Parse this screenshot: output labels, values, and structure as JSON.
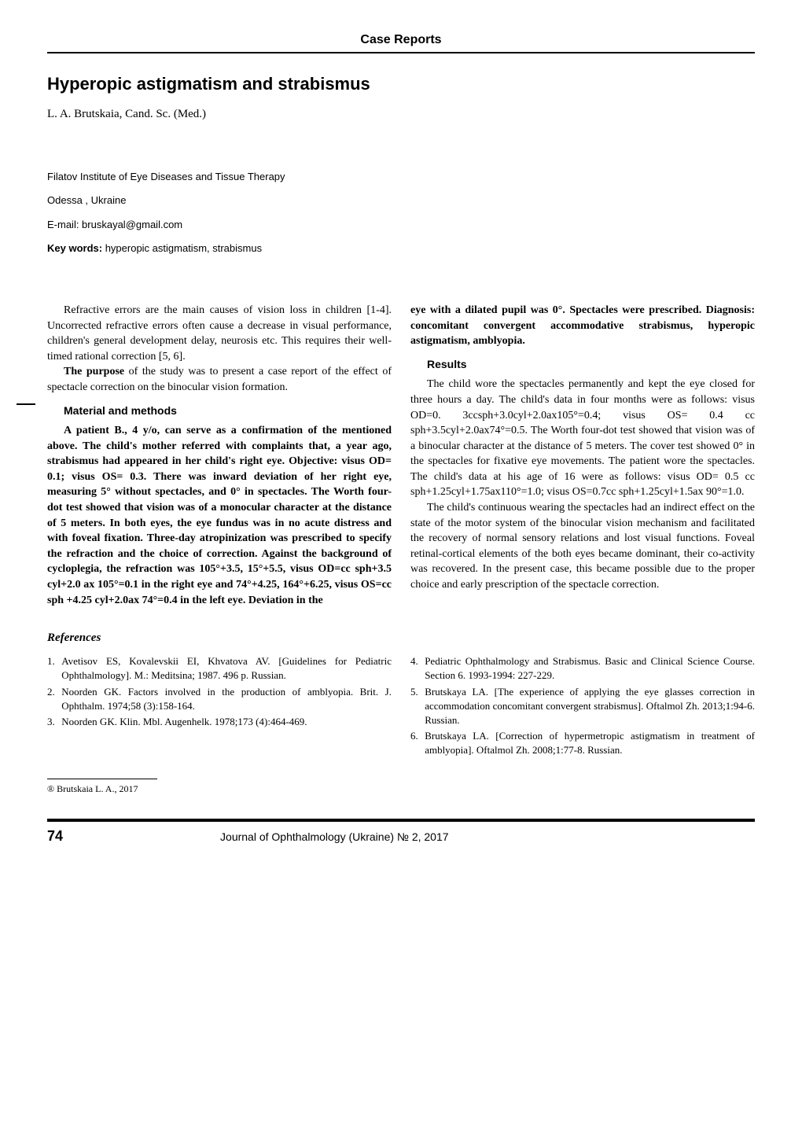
{
  "section_label": "Case Reports",
  "title": "Hyperopic astigmatism and strabismus",
  "author": "L. A. Brutskaia, Cand. Sc. (Med.)",
  "affiliation1": "Filatov Institute of Eye Diseases and Tissue Therapy",
  "affiliation2": "Odessa , Ukraine",
  "email_line": "E-mail: bruskayal@gmail.com",
  "keywords_label": "Key words:",
  "keywords_text": " hyperopic astigmatism, strabismus",
  "intro_p1": "Refractive errors are the main causes of vision loss in children [1-4]. Uncorrected refractive errors often cause a decrease in visual performance, children's general development delay, neurosis etc.  This requires their well-timed rational correction [5, 6].",
  "intro_p2_pre": "The purpose",
  "intro_p2_post": " of the study was to present a case report of the effect of spectacle correction on the binocular vision formation.",
  "materials_head": "Material and methods",
  "materials_p": "A patient B., 4 y/o, can serve as a confirmation of the mentioned above. The child's mother referred with complaints that, a year ago, strabismus had appeared in her child's right eye. Objective: visus OD= 0.1; visus OS= 0.3. There was inward deviation of her right eye, measuring 5° without spectacles, and 0° in spectacles. The Worth four-dot test showed that vision was of a monocular character at the distance of 5 meters. In both eyes, the eye fundus was in no acute distress and with foveal fixation. Three-day atropinization was prescribed to specify the refraction and the choice of correction. Against the background of cycloplegia, the refraction was 105°+3.5, 15°+5.5, visus OD=cc sph+3.5 cyl+2.0 ax 105°=0.1 in the right eye and 74°+4.25, 164°+6.25, visus OS=cc sph +4.25 cyl+2.0ax 74°=0.4 in the left eye. Deviation in the",
  "right_top_p": "eye with a dilated pupil was 0°. Spectacles were prescribed. Diagnosis: concomitant convergent accommodative strabismus, hyperopic astigmatism, amblyopia.",
  "results_head": "Results",
  "results_p1": "The child wore the spectacles permanently and kept the eye closed for three hours a day. The child's data in four months were as follows: visus OD=0. 3ccsph+3.0cyl+2.0ax105°=0.4; visus OS= 0.4 cc sph+3.5cyl+2.0ax74°=0.5. The Worth four-dot test showed that vision was of a binocular character at the distance of 5 meters. The cover test showed 0° in the spectacles for fixative eye movements. The patient wore the spectacles. The child's data at his age of 16 were as follows: visus OD= 0.5 cc sph+1.25cyl+1.75ax110°=1.0; visus OS=0.7cc sph+1.25cyl+1.5ax 90°=1.0.",
  "results_p2": "The child's continuous wearing the spectacles had an indirect effect on the state of the motor system of the binocular vision mechanism and facilitated the recovery of normal sensory relations and lost visual functions. Foveal retinal-cortical elements of the both eyes became dominant, their co-activity was recovered. In the present case, this became possible due to the proper choice and early prescription of the spectacle correction.",
  "refs_head": "References",
  "refs": [
    "Avetisov ES, Kovalevskii EI, Khvatova AV. [Guidelines for Pediatric Ophthalmology]. M.: Meditsina; 1987. 496 p. Russian.",
    "Noorden GK. Factors involved in the production of amblyopia. Brit. J. Ophthalm. 1974;58 (3):158-164.",
    "Noorden GK. Klin. Mbl. Augenhelk. 1978;173 (4):464-469.",
    "Pediatric Ophthalmology and Strabismus. Basic and Clinical Science Course. Section 6. 1993-1994: 227-229.",
    "Brutskaya LA. [The experience of applying the eye glasses correction in accommodation concomitant convergent strabismus]. Oftalmol Zh. 2013;1:94-6. Russian.",
    "Brutskaya LA. [Correction of hypermetropic astigmatism in treatment of amblyopia]. Oftalmol Zh. 2008;1:77-8. Russian."
  ],
  "copyright": "® Brutskaia L. A., 2017",
  "page_num": "74",
  "journal": "Journal of Ophthalmology (Ukraine) № 2, 2017"
}
